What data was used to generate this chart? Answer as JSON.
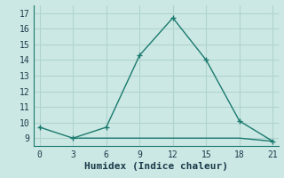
{
  "xlabel": "Humidex (Indice chaleur)",
  "ylabel": "",
  "bg_color": "#cce8e4",
  "grid_color": "#afd4cf",
  "line_color": "#1a7a6e",
  "x_main": [
    0,
    3,
    6,
    9,
    12,
    15,
    18,
    21
  ],
  "y_main": [
    9.7,
    9.0,
    9.7,
    14.3,
    16.7,
    14.0,
    10.1,
    8.8
  ],
  "x_flat": [
    3,
    6,
    9,
    12,
    12,
    15,
    18,
    21
  ],
  "y_flat": [
    9.0,
    9.0,
    9.0,
    9.0,
    9.0,
    9.0,
    9.0,
    8.8
  ],
  "xlim": [
    -0.5,
    21.5
  ],
  "ylim": [
    8.5,
    17.5
  ],
  "xticks": [
    0,
    3,
    6,
    9,
    12,
    15,
    18,
    21
  ],
  "yticks": [
    9,
    10,
    11,
    12,
    13,
    14,
    15,
    16,
    17
  ],
  "marker": "+",
  "marker_size": 5,
  "linewidth": 1.0,
  "font_color": "#1a3a4a",
  "tick_fontsize": 7,
  "label_fontsize": 8
}
